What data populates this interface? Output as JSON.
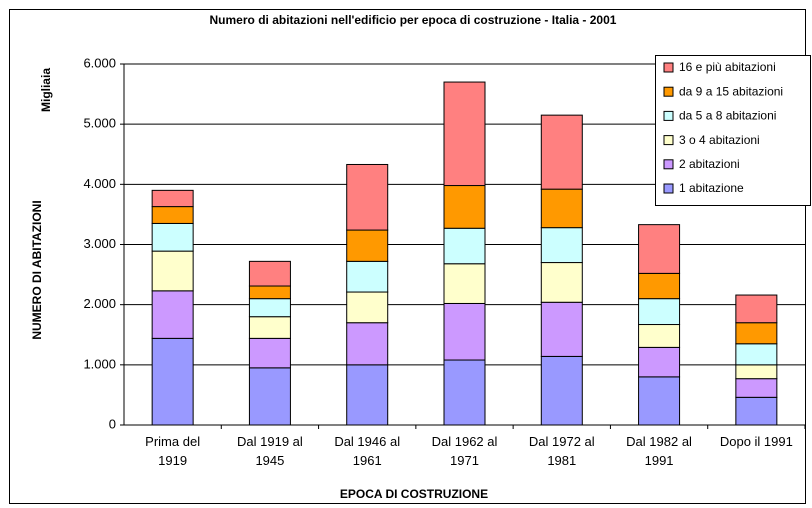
{
  "chart_data": {
    "type": "stacked_bar",
    "title": "Numero di abitazioni nell'edificio per epoca di costruzione - Italia - 2001",
    "y_unit": "Migliaia",
    "y_label": "NUMERO DI ABITAZIONI",
    "x_label": "EPOCA DI COSTRUZIONE",
    "categories": [
      "Prima del\n1919",
      "Dal 1919 al\n1945",
      "Dal 1946 al\n1961",
      "Dal 1962 al\n1971",
      "Dal 1972 al\n1981",
      "Dal 1982 al\n1991",
      "Dopo il 1991"
    ],
    "series": [
      {
        "name": "1 abitazione",
        "color": "#9999ff",
        "values": [
          1440,
          950,
          1000,
          1080,
          1140,
          800,
          460
        ]
      },
      {
        "name": "2 abitazioni",
        "color": "#cc99ff",
        "values": [
          790,
          490,
          700,
          940,
          900,
          490,
          310
        ]
      },
      {
        "name": "3 o 4 abitazioni",
        "color": "#ffffcc",
        "values": [
          660,
          360,
          510,
          660,
          660,
          380,
          230
        ]
      },
      {
        "name": "da 5 a 8 abitazioni",
        "color": "#ccffff",
        "values": [
          460,
          300,
          510,
          590,
          580,
          430,
          350
        ]
      },
      {
        "name": "da 9 a 15 abitazioni",
        "color": "#ff9900",
        "values": [
          280,
          210,
          520,
          710,
          640,
          420,
          350
        ]
      },
      {
        "name": "16 e più abitazioni",
        "color": "#ff8080",
        "values": [
          270,
          410,
          1090,
          1720,
          1230,
          810,
          460
        ]
      }
    ],
    "ylim": [
      0,
      6000
    ],
    "yticks": [
      0,
      {
        "value": 1000,
        "label": "1.000"
      },
      {
        "value": 2000,
        "label": "2.000"
      },
      {
        "value": 3000,
        "label": "3.000"
      },
      {
        "value": 4000,
        "label": "4.000"
      },
      {
        "value": 5000,
        "label": "5.000"
      },
      {
        "value": 6000,
        "label": "6.000"
      }
    ],
    "grid": true,
    "legend": "top-right"
  }
}
